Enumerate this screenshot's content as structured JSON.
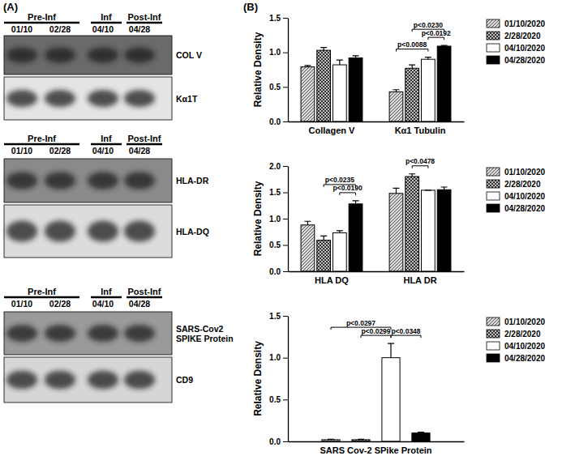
{
  "panel_labels": [
    "(A)",
    "(B)"
  ],
  "blots": [
    {
      "groups": [
        "Pre-Inf",
        "Inf",
        "Post-Inf"
      ],
      "lanes": [
        "01/10",
        "02/28",
        "04/10",
        "04/28"
      ],
      "rows": [
        [
          "COL V"
        ],
        [
          "Kα1T"
        ]
      ]
    },
    {
      "groups": [
        "Pre-Inf",
        "Inf",
        "Post-Inf"
      ],
      "lanes": [
        "01/10",
        "02/28",
        "04/10",
        "04/28"
      ],
      "rows": [
        [
          "HLA-DR"
        ],
        [
          "HLA-DQ"
        ]
      ]
    },
    {
      "groups": [
        "Pre-Inf",
        "Inf",
        "Post-Inf"
      ],
      "lanes": [
        "01/10",
        "02/28",
        "04/10",
        "04/28"
      ],
      "rows": [
        [
          "SARS-Cov2",
          "SPIKE Protein"
        ],
        [
          "CD9"
        ]
      ]
    }
  ],
  "chart_data": [
    {
      "type": "bar",
      "y_label": "Relative Density",
      "categories": [
        "Collagen V",
        "Kα1 Tubulin"
      ],
      "series": [
        {
          "name": "01/10/2020",
          "color": "#d9d9d9",
          "values": [
            0.79,
            0.43
          ],
          "errors": [
            0.02,
            0.03
          ]
        },
        {
          "name": "2/28/2020",
          "color": "#bdbdbd",
          "values": [
            1.03,
            0.77
          ],
          "errors": [
            0.04,
            0.05
          ]
        },
        {
          "name": "04/10/2020",
          "color": "#ffffff",
          "values": [
            0.82,
            0.9
          ],
          "errors": [
            0.07,
            0.03
          ]
        },
        {
          "name": "04/28/2020",
          "color": "#000000",
          "values": [
            0.92,
            1.09
          ],
          "errors": [
            0.03,
            0.01
          ]
        }
      ],
      "ylim": [
        0,
        1.5
      ],
      "yticks": [
        {
          "value": 0,
          "label": "0.0"
        },
        {
          "value": 0.5,
          "label": "0.5"
        },
        {
          "value": 1,
          "label": "1.0"
        },
        {
          "value": 1.5,
          "label": "1.5"
        }
      ],
      "grid": false,
      "legend": "right",
      "annotations": [
        {
          "text": "p<0.0088",
          "category": "Kα1 Tubulin",
          "from": "01/10/2020",
          "to": "04/10/2020"
        },
        {
          "text": "p<0.0192",
          "category": "Kα1 Tubulin",
          "from": "04/10/2020",
          "to": "04/28/2020"
        },
        {
          "text": "p<0.0230",
          "category": "Kα1 Tubulin",
          "from": "2/28/2020",
          "to": "04/28/2020"
        }
      ]
    },
    {
      "type": "bar",
      "y_label": "Relative Density",
      "categories": [
        "HLA DQ",
        "HLA DR"
      ],
      "series": [
        {
          "name": "01/10/2020",
          "color": "#d9d9d9",
          "values": [
            0.88,
            1.48
          ],
          "errors": [
            0.07,
            0.1
          ]
        },
        {
          "name": "2/28/2020",
          "color": "#bdbdbd",
          "values": [
            0.59,
            1.8
          ],
          "errors": [
            0.08,
            0.05
          ]
        },
        {
          "name": "04/10/2020",
          "color": "#ffffff",
          "values": [
            0.73,
            1.54
          ],
          "errors": [
            0.04,
            0
          ]
        },
        {
          "name": "04/28/2020",
          "color": "#000000",
          "values": [
            1.28,
            1.55
          ],
          "errors": [
            0.06,
            0.05
          ]
        }
      ],
      "ylim": [
        0,
        2
      ],
      "yticks": [
        {
          "value": 0,
          "label": "0.0"
        },
        {
          "value": 0.5,
          "label": "0.5"
        },
        {
          "value": 1,
          "label": "1.0"
        },
        {
          "value": 1.5,
          "label": "1.5"
        },
        {
          "value": 2,
          "label": "2.0"
        }
      ],
      "grid": false,
      "legend": "right",
      "annotations": [
        {
          "text": "p<0.0190",
          "category": "HLA DQ",
          "from": "04/10/2020",
          "to": "04/28/2020"
        },
        {
          "text": "p<0.0235",
          "category": "HLA DQ",
          "from": "2/28/2020",
          "to": "04/28/2020"
        },
        {
          "text": "p<0.0478",
          "category": "HLA DR",
          "from": "2/28/2020",
          "to": "04/10/2020"
        }
      ]
    },
    {
      "type": "bar",
      "y_label": "Relative Density",
      "categories": [
        "SARS Cov-2 SPike Protein"
      ],
      "series": [
        {
          "name": "01/10/2020",
          "color": "#d9d9d9",
          "values": [
            0.02
          ],
          "errors": [
            0.005
          ]
        },
        {
          "name": "2/28/2020",
          "color": "#bdbdbd",
          "values": [
            0.02
          ],
          "errors": [
            0.005
          ]
        },
        {
          "name": "04/10/2020",
          "color": "#ffffff",
          "values": [
            1.0
          ],
          "errors": [
            0.17
          ]
        },
        {
          "name": "04/28/2020",
          "color": "#000000",
          "values": [
            0.1
          ],
          "errors": [
            0.01
          ]
        }
      ],
      "ylim": [
        0,
        1.5
      ],
      "yticks": [
        {
          "value": 0,
          "label": "0.0"
        },
        {
          "value": 0.5,
          "label": "0.5"
        },
        {
          "value": 1,
          "label": "1.0"
        },
        {
          "value": 1.5,
          "label": "1.5"
        }
      ],
      "grid": false,
      "legend": "right",
      "annotations": [
        {
          "text": "p<0.0299",
          "category": "SARS Cov-2 SPike Protein",
          "from": "2/28/2020",
          "to": "04/10/2020"
        },
        {
          "text": "p<0.0348",
          "category": "SARS Cov-2 SPike Protein",
          "from": "04/10/2020",
          "to": "04/28/2020"
        },
        {
          "text": "p<0.0297",
          "category": "SARS Cov-2 SPike Protein",
          "from": "01/10/2020",
          "to": "04/10/2020"
        }
      ]
    }
  ]
}
